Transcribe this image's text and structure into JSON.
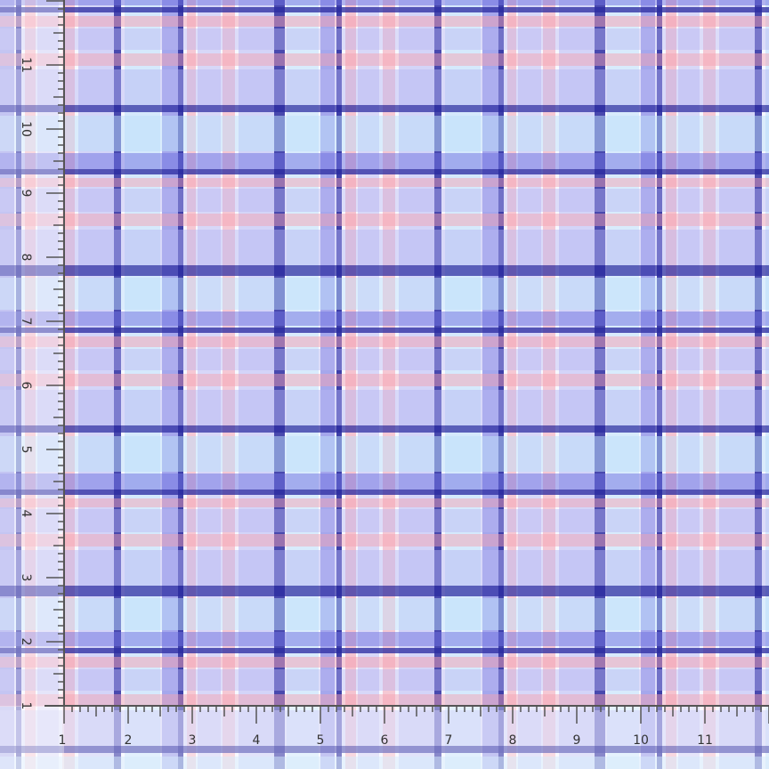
{
  "image": {
    "subject": "plaid fabric swatch",
    "colors": {
      "navy": "#2a2aa0",
      "periwinkle": "#6f72e0",
      "lavender": "#b7b6f2",
      "pink": "#f4a0b0",
      "sky": "#bfe0fa",
      "white": "#f6f8ff"
    }
  },
  "ruler": {
    "unit": "inch",
    "bottom_labels": [
      "1",
      "2",
      "3",
      "4",
      "5",
      "6",
      "7",
      "8",
      "9",
      "10",
      "11"
    ],
    "left_labels": [
      "1",
      "2",
      "3",
      "4",
      "5",
      "6",
      "7",
      "8",
      "9",
      "10",
      "11"
    ],
    "color": "#555555"
  }
}
